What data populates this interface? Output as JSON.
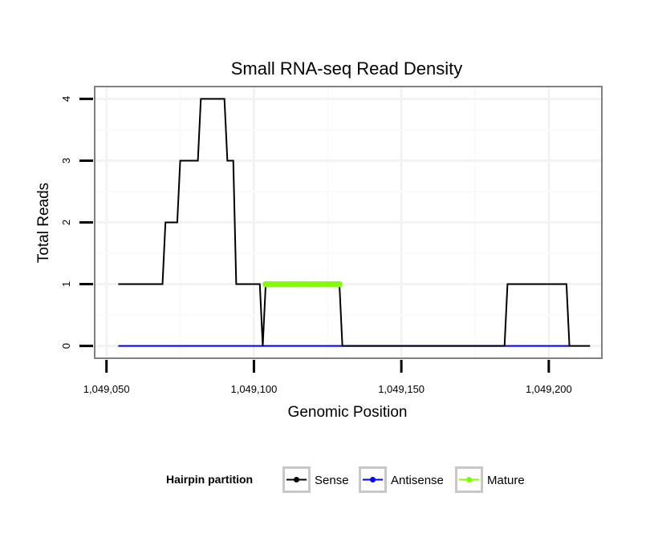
{
  "chart_data": {
    "type": "line",
    "title": "Small RNA-seq Read Density",
    "xlabel": "Genomic Position",
    "ylabel": "Total Reads",
    "xlim": [
      1049046,
      1049218
    ],
    "ylim": [
      -0.2,
      4.2
    ],
    "x_ticks": [
      1049050,
      1049100,
      1049150,
      1049200
    ],
    "x_tick_labels": [
      "1,049,050",
      "1,049,100",
      "1,049,150",
      "1,049,200"
    ],
    "y_ticks": [
      0,
      1,
      2,
      3,
      4
    ],
    "y_tick_labels": [
      "0",
      "1",
      "2",
      "3",
      "4"
    ],
    "grid": true,
    "legend": {
      "title": "Hairpin partition",
      "position": "bottom",
      "entries": [
        "Sense",
        "Antisense",
        "Mature"
      ]
    },
    "series": [
      {
        "name": "Sense",
        "color": "#000000",
        "x": [
          1049054,
          1049069,
          1049070,
          1049074,
          1049075,
          1049081,
          1049082,
          1049090,
          1049091,
          1049093,
          1049094,
          1049102,
          1049103,
          1049104,
          1049129,
          1049130,
          1049185,
          1049186,
          1049206,
          1049207,
          1049214
        ],
        "y": [
          1,
          1,
          2,
          2,
          3,
          3,
          4,
          4,
          3,
          3,
          1,
          1,
          0,
          1,
          1,
          0,
          0,
          1,
          1,
          0,
          0
        ]
      },
      {
        "name": "Antisense",
        "color": "#0000ff",
        "x": [
          1049054,
          1049207
        ],
        "y": [
          0,
          0
        ]
      },
      {
        "name": "Mature",
        "color": "#7fff00",
        "x": [
          1049104,
          1049105,
          1049106,
          1049107,
          1049108,
          1049109,
          1049110,
          1049111,
          1049112,
          1049113,
          1049114,
          1049115,
          1049116,
          1049117,
          1049118,
          1049119,
          1049120,
          1049121,
          1049122,
          1049123,
          1049124,
          1049125,
          1049126,
          1049127,
          1049128,
          1049129
        ],
        "y": [
          1,
          1,
          1,
          1,
          1,
          1,
          1,
          1,
          1,
          1,
          1,
          1,
          1,
          1,
          1,
          1,
          1,
          1,
          1,
          1,
          1,
          1,
          1,
          1,
          1,
          1
        ]
      }
    ]
  }
}
